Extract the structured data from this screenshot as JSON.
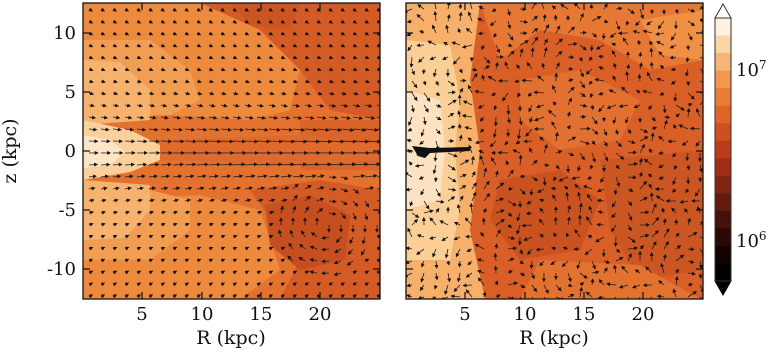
{
  "chart_data": [
    {
      "type": "heatmap",
      "panel": "left",
      "xlabel": "R (kpc)",
      "ylabel": "z (kpc)",
      "xlim": [
        0,
        25
      ],
      "ylim": [
        -12.5,
        12.5
      ],
      "xticks": [
        5,
        10,
        15,
        20
      ],
      "yticks": [
        10,
        5,
        0,
        -5,
        -10
      ],
      "overlay": "velocity-vector-field",
      "structure": "disk at z=0 with strong radial flow; vortex near R~20, z~-6"
    },
    {
      "type": "heatmap",
      "panel": "right",
      "xlabel": "R (kpc)",
      "ylabel": "",
      "xlim": [
        0,
        25
      ],
      "ylim": [
        -12.5,
        12.5
      ],
      "xticks": [
        5,
        10,
        15,
        20
      ],
      "overlay": "velocity-vector-field",
      "structure": "turbulent flow; dense feature near R~1-5 at z=0"
    }
  ],
  "colorbar": {
    "scale": "log",
    "tick_labels": [
      "10^7",
      "10^6"
    ],
    "colors": [
      "#fdf1e0",
      "#fbd6a4",
      "#f7b577",
      "#f29750",
      "#ea7c36",
      "#df6426",
      "#cf4f1e",
      "#bb3c18",
      "#a02e14",
      "#822411",
      "#631b0d",
      "#451109",
      "#2a0805",
      "#120302",
      "#000000"
    ]
  }
}
